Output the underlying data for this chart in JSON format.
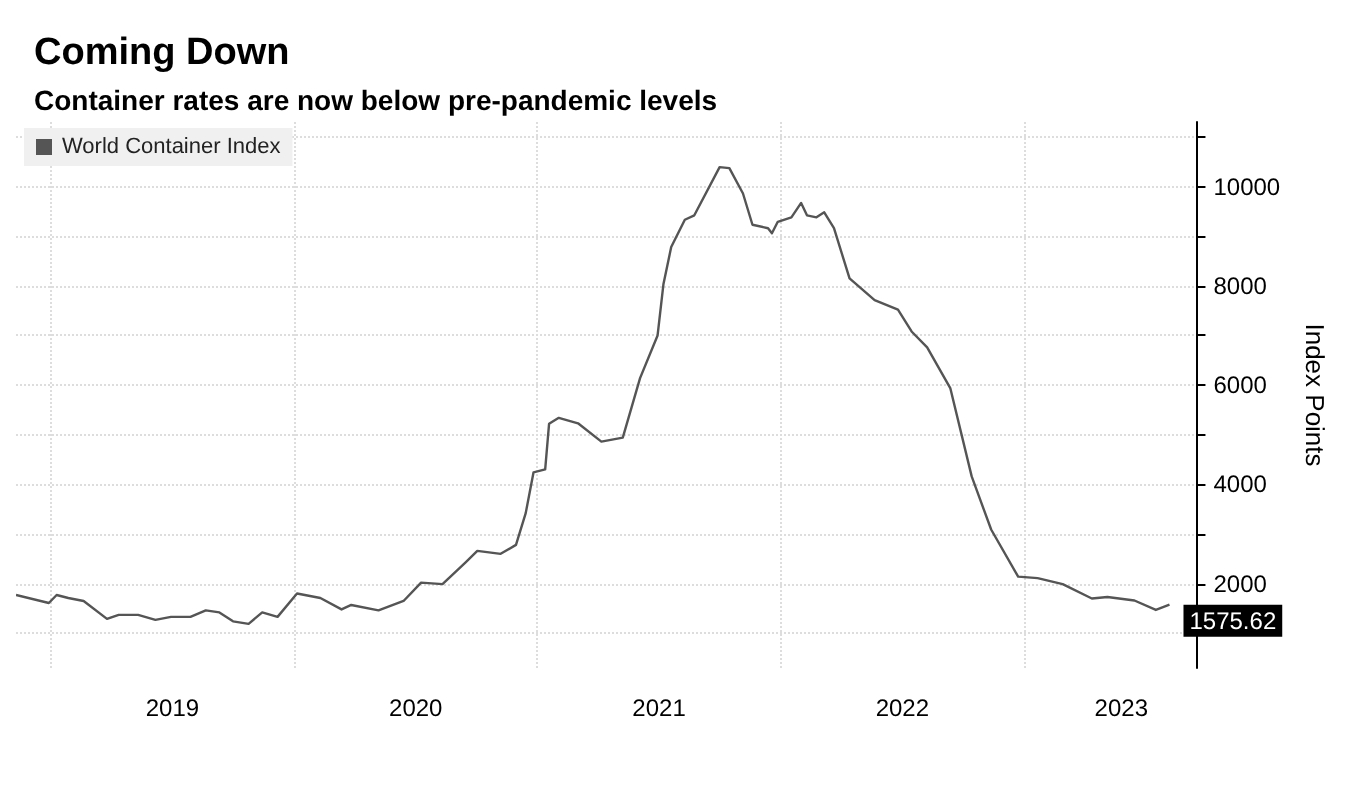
{
  "chart_data": {
    "type": "line",
    "title": "Coming Down",
    "subtitle": "Container rates are now below pre-pandemic levels",
    "ylabel": "Index Points",
    "legend": "top left",
    "grid": true,
    "marker": "none",
    "line_style": "solid",
    "xlim": [
      2018.857,
      2023.713
    ],
    "xticks": [
      {
        "value": 2019,
        "label": null
      },
      {
        "value": 2019.5,
        "label": "2019"
      },
      {
        "value": 2020,
        "label": null
      },
      {
        "value": 2020.5,
        "label": "2020"
      },
      {
        "value": 2021,
        "label": null
      },
      {
        "value": 2021.5,
        "label": "2021"
      },
      {
        "value": 2022,
        "label": null
      },
      {
        "value": 2022.5,
        "label": "2022"
      },
      {
        "value": 2023,
        "label": null
      },
      {
        "value": 2023.4,
        "label": "2023"
      }
    ],
    "ylim": [
      300,
      11300
    ],
    "yticks": [
      {
        "value": 1000,
        "label": null
      },
      2000,
      {
        "value": 3000,
        "label": null
      },
      4000,
      {
        "value": 5000,
        "label": null
      },
      6000,
      {
        "value": 7000,
        "label": null
      },
      8000,
      {
        "value": 9000,
        "label": null
      },
      10000,
      {
        "value": 11000,
        "label": null
      }
    ],
    "series": [
      {
        "name": "World Container Index",
        "color": "#555555",
        "x": [
          2018.857,
          2018.992,
          2019.024,
          2019.072,
          2019.135,
          2019.231,
          2019.279,
          2019.359,
          2019.43,
          2019.494,
          2019.574,
          2019.637,
          2019.693,
          2019.749,
          2019.813,
          2019.869,
          2019.932,
          2020.012,
          2020.108,
          2020.195,
          2020.235,
          2020.347,
          2020.45,
          2020.522,
          2020.61,
          2020.705,
          2020.753,
          2020.849,
          2020.912,
          2020.952,
          2020.984,
          2021.032,
          2021.048,
          2021.088,
          2021.167,
          2021.263,
          2021.351,
          2021.422,
          2021.494,
          2021.518,
          2021.55,
          2021.606,
          2021.645,
          2021.749,
          2021.789,
          2021.845,
          2021.884,
          2021.948,
          2021.964,
          2021.988,
          2022.044,
          2022.084,
          2022.108,
          2022.147,
          2022.179,
          2022.219,
          2022.283,
          2022.386,
          2022.482,
          2022.538,
          2022.602,
          2022.697,
          2022.785,
          2022.865,
          2022.976,
          2023.056,
          2023.159,
          2023.279,
          2023.343,
          2023.454,
          2023.542,
          2023.598
        ],
        "values": [
          1770,
          1610,
          1770,
          1710,
          1650,
          1290,
          1370,
          1370,
          1270,
          1330,
          1330,
          1460,
          1420,
          1240,
          1190,
          1420,
          1330,
          1800,
          1710,
          1480,
          1570,
          1460,
          1650,
          2020,
          1990,
          2430,
          2660,
          2600,
          2780,
          3420,
          4240,
          4300,
          5220,
          5340,
          5230,
          4860,
          4940,
          6140,
          7000,
          8030,
          8780,
          9330,
          9420,
          10390,
          10370,
          9860,
          9230,
          9160,
          9060,
          9290,
          9380,
          9670,
          9420,
          9380,
          9480,
          9160,
          8150,
          7710,
          7520,
          7080,
          6760,
          5940,
          4160,
          3090,
          2140,
          2110,
          1990,
          1700,
          1730,
          1660,
          1470,
          1575.62
        ],
        "value_labels": [
          null,
          null,
          null,
          null,
          null,
          null,
          null,
          null,
          null,
          null,
          null,
          null,
          null,
          null,
          null,
          null,
          null,
          null,
          null,
          null,
          null,
          null,
          null,
          null,
          null,
          null,
          null,
          null,
          null,
          null,
          null,
          null,
          null,
          null,
          null,
          null,
          null,
          null,
          null,
          null,
          null,
          null,
          null,
          null,
          null,
          null,
          null,
          null,
          null,
          null,
          null,
          null,
          null,
          null,
          null,
          null,
          null,
          null,
          null,
          null,
          null,
          null,
          null,
          null,
          null,
          null,
          null,
          null,
          null,
          null,
          null,
          "1575.62"
        ]
      }
    ]
  }
}
